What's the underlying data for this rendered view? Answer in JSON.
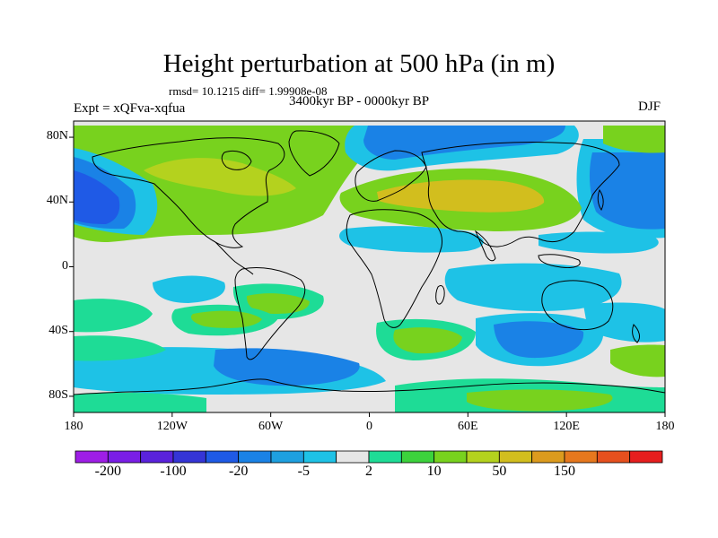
{
  "figure": {
    "title": "Height perturbation at 500 hPa (in m)",
    "stats": "rmsd= 10.1215 diff= 1.99908e-08",
    "experiment": "Expt = xQFva-xqfua",
    "period": "3400kyr BP - 0000kyr BP",
    "season": "DJF"
  },
  "axes": {
    "y_ticks": [
      {
        "label": "80N",
        "lat": 80
      },
      {
        "label": "40N",
        "lat": 40
      },
      {
        "label": "0",
        "lat": 0
      },
      {
        "label": "40S",
        "lat": -40
      },
      {
        "label": "80S",
        "lat": -80
      }
    ],
    "x_ticks": [
      {
        "label": "180",
        "lon": -180
      },
      {
        "label": "120W",
        "lon": -120
      },
      {
        "label": "60W",
        "lon": -60
      },
      {
        "label": "0",
        "lon": 0
      },
      {
        "label": "60E",
        "lon": 60
      },
      {
        "label": "120E",
        "lon": 120
      },
      {
        "label": "180",
        "lon": 180
      }
    ],
    "lon_range": [
      -180,
      180
    ],
    "lat_range": [
      -90,
      90
    ]
  },
  "colorbar": {
    "colors": [
      "#9e1ee6",
      "#7a1ee6",
      "#5a22dc",
      "#3535d6",
      "#1f5ae6",
      "#1a82e6",
      "#1ea0e0",
      "#1ec2e6",
      "#e6e6e6",
      "#1edc96",
      "#3cd23c",
      "#78d21e",
      "#b4d21e",
      "#d2be1e",
      "#dc9b1e",
      "#e6781e",
      "#e6501e",
      "#e61e1e"
    ],
    "labels": [
      {
        "text": "-200",
        "after_box": 1
      },
      {
        "text": "-100",
        "after_box": 3
      },
      {
        "text": "-20",
        "after_box": 5
      },
      {
        "text": "-5",
        "after_box": 7
      },
      {
        "text": "2",
        "after_box": 9
      },
      {
        "text": "10",
        "after_box": 11
      },
      {
        "text": "50",
        "after_box": 13
      },
      {
        "text": "150",
        "after_box": 15
      }
    ]
  },
  "field_colors": {
    "background": "#e6e6e6",
    "strong_neg": "#1f5ae6",
    "neg": "#1a82e6",
    "weak_neg": "#1ec2e6",
    "weak_pos": "#1edc96",
    "pos": "#78d21e",
    "strong_pos": "#b4d21e",
    "max_pos": "#d2be1e"
  }
}
